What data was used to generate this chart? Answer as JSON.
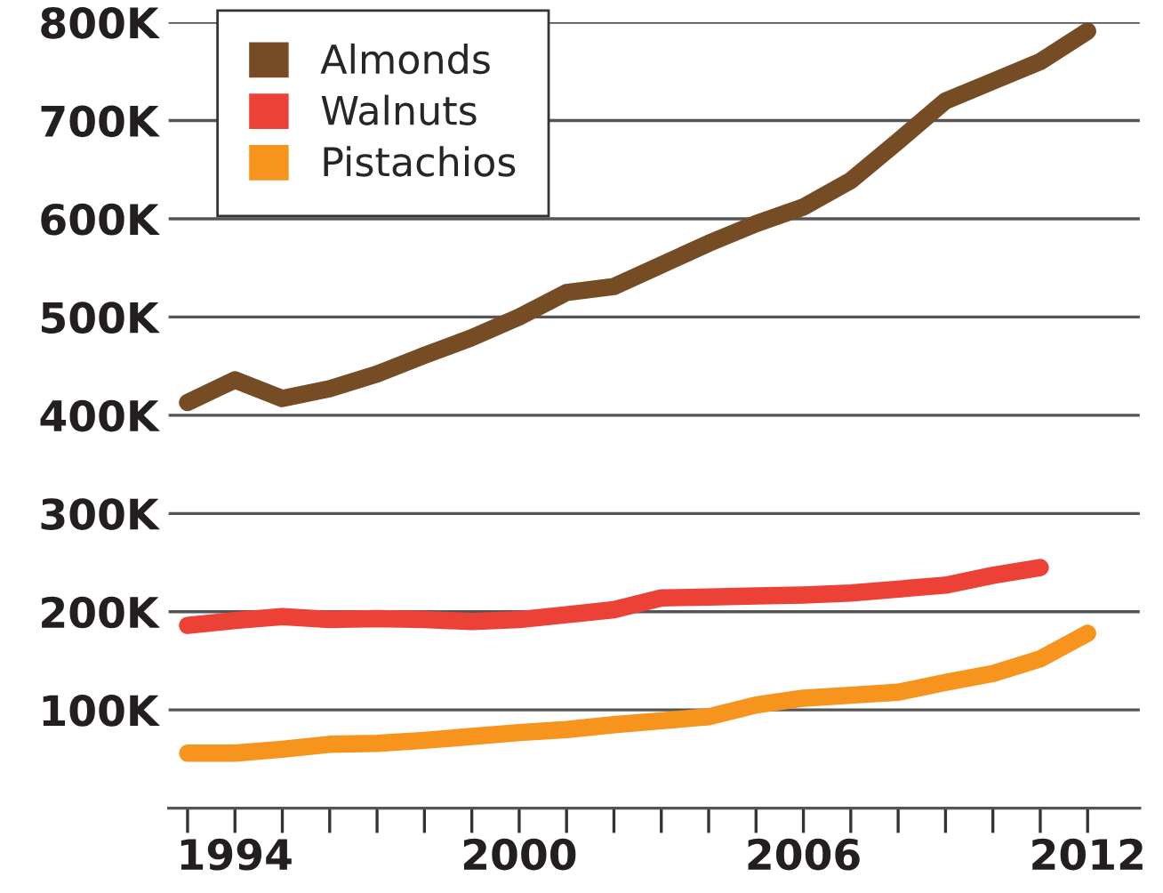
{
  "chart_data": {
    "type": "line",
    "x": [
      1993,
      1994,
      1995,
      1996,
      1997,
      1998,
      1999,
      2000,
      2001,
      2002,
      2003,
      2004,
      2005,
      2006,
      2007,
      2008,
      2009,
      2010,
      2011,
      2012
    ],
    "series": [
      {
        "name": "Almonds",
        "color": "#754c24",
        "values": [
          413000,
          436000,
          417000,
          427000,
          442000,
          461000,
          479000,
          500000,
          525000,
          531000,
          553000,
          575000,
          595000,
          612000,
          639000,
          679000,
          720000,
          740000,
          760000,
          791000
        ]
      },
      {
        "name": "Walnuts",
        "color": "#ec4136",
        "values": [
          186000,
          191000,
          195000,
          192000,
          193000,
          192000,
          190000,
          192000,
          197000,
          202000,
          214000,
          215000,
          216000,
          217000,
          219000,
          223000,
          227000,
          237000,
          245000,
          null
        ]
      },
      {
        "name": "Pistachios",
        "color": "#f7941d",
        "values": [
          56000,
          56000,
          60000,
          65000,
          66000,
          69000,
          73000,
          77000,
          80000,
          85000,
          89000,
          93000,
          105000,
          112000,
          115000,
          118000,
          128000,
          137000,
          152000,
          178000
        ]
      }
    ],
    "xlim": [
      1992.6,
      2013.1
    ],
    "xticks": [
      {
        "value": 1993,
        "label": null
      },
      {
        "value": 1994,
        "label": "1994"
      },
      {
        "value": 1995,
        "label": null
      },
      {
        "value": 1996,
        "label": null
      },
      {
        "value": 1997,
        "label": null
      },
      {
        "value": 1998,
        "label": null
      },
      {
        "value": 1999,
        "label": null
      },
      {
        "value": 2000,
        "label": "2000"
      },
      {
        "value": 2001,
        "label": null
      },
      {
        "value": 2002,
        "label": null
      },
      {
        "value": 2003,
        "label": null
      },
      {
        "value": 2004,
        "label": null
      },
      {
        "value": 2005,
        "label": null
      },
      {
        "value": 2006,
        "label": "2006"
      },
      {
        "value": 2007,
        "label": null
      },
      {
        "value": 2008,
        "label": null
      },
      {
        "value": 2009,
        "label": null
      },
      {
        "value": 2010,
        "label": null
      },
      {
        "value": 2011,
        "label": null
      },
      {
        "value": 2012,
        "label": "2012"
      }
    ],
    "ylim": [
      0,
      800000
    ],
    "yticks": [
      {
        "value": 100000,
        "label": "100K"
      },
      {
        "value": 200000,
        "label": "200K"
      },
      {
        "value": 300000,
        "label": "300K"
      },
      {
        "value": 400000,
        "label": "400K"
      },
      {
        "value": 500000,
        "label": "500K"
      },
      {
        "value": 600000,
        "label": "600K"
      },
      {
        "value": 700000,
        "label": "700K"
      },
      {
        "value": 800000,
        "label": "800K"
      }
    ],
    "grid": "y",
    "legend": "top left",
    "marker": "none",
    "line_style": "solid"
  }
}
